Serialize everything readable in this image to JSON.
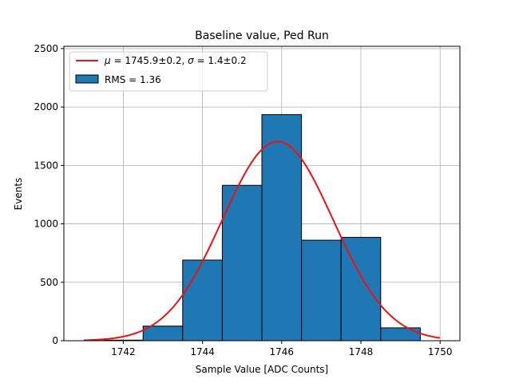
{
  "chart_data": {
    "type": "bar",
    "title": "Baseline value, Ped Run",
    "xlabel": "Sample Value [ADC Counts]",
    "ylabel": "Events",
    "xlim": [
      1740.5,
      1750.5
    ],
    "ylim": [
      0,
      2520
    ],
    "grid": true,
    "xticks": [
      1742,
      1744,
      1746,
      1748,
      1750
    ],
    "yticks": [
      0,
      500,
      1000,
      1500,
      2000,
      2500
    ],
    "bins": [
      {
        "left": 1741.5,
        "right": 1742.5,
        "value": 5
      },
      {
        "left": 1742.5,
        "right": 1743.5,
        "value": 125
      },
      {
        "left": 1743.5,
        "right": 1744.5,
        "value": 690
      },
      {
        "left": 1744.5,
        "right": 1745.5,
        "value": 1330
      },
      {
        "left": 1745.5,
        "right": 1746.5,
        "value": 1935
      },
      {
        "left": 1746.5,
        "right": 1747.5,
        "value": 860
      },
      {
        "left": 1747.5,
        "right": 1748.5,
        "value": 885
      },
      {
        "left": 1748.5,
        "right": 1749.5,
        "value": 110
      }
    ],
    "bar_color": "#1f77b4",
    "fit": {
      "type": "gaussian",
      "mu": 1745.9,
      "sigma": 1.4,
      "amplitude": 1705,
      "x_range": [
        1741,
        1750
      ],
      "color": "#ee1111"
    },
    "legend": {
      "placement": "top-left",
      "entries": [
        {
          "label_prefix_mu": "μ",
          "label_mu_value": " = 1745.9±0.2, ",
          "label_prefix_sigma": "σ",
          "label_sigma_value": " = 1.4±0.2",
          "kind": "line"
        },
        {
          "label": "RMS = 1.36",
          "kind": "patch"
        }
      ]
    }
  }
}
